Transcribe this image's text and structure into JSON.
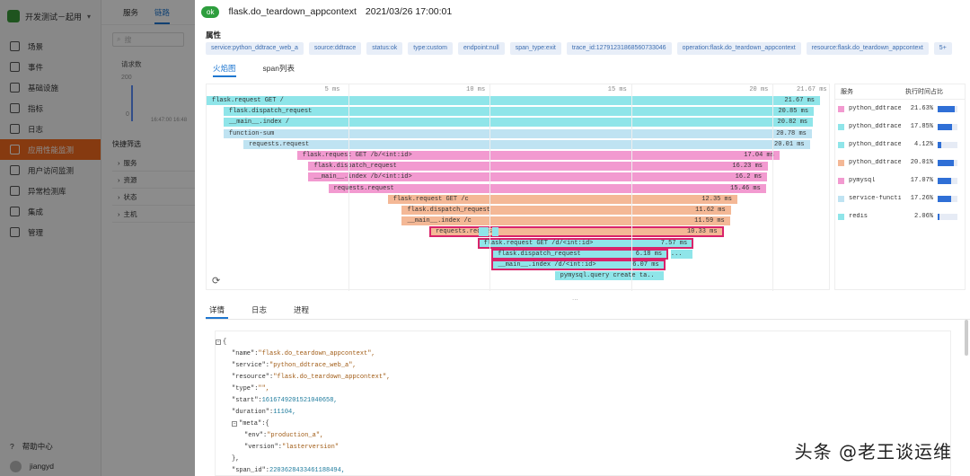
{
  "sidebar": {
    "app_name": "开发测试－起用",
    "items": [
      {
        "label": "场景",
        "icon": "grid-icon",
        "active": false
      },
      {
        "label": "事件",
        "icon": "flag-icon",
        "active": false
      },
      {
        "label": "基础设施",
        "icon": "server-icon",
        "active": false
      },
      {
        "label": "指标",
        "icon": "chart-icon",
        "active": false
      },
      {
        "label": "日志",
        "icon": "log-icon",
        "active": false
      },
      {
        "label": "应用性能监测",
        "icon": "apm-icon",
        "active": true
      },
      {
        "label": "用户访问监测",
        "icon": "user-icon",
        "active": false
      },
      {
        "label": "异常检测库",
        "icon": "alert-icon",
        "active": false
      },
      {
        "label": "集成",
        "icon": "puzzle-icon",
        "active": false
      },
      {
        "label": "管理",
        "icon": "gear-icon",
        "active": false
      }
    ],
    "footer": {
      "help": "帮助中心",
      "user": "jiangyd"
    }
  },
  "bg_main": {
    "tabs": [
      "服务",
      "链路"
    ],
    "search_placeholder": "搜",
    "chart_title": "请求数",
    "chart_y": "200",
    "chart_zero": "0",
    "axis_labels": "16:47:00    16:48",
    "filter_title": "快捷筛选",
    "filters": [
      "服务",
      "资源",
      "状态",
      "主机"
    ]
  },
  "drawer": {
    "status": "ok",
    "title": "flask.do_teardown_appcontext",
    "time": "2021/03/26 17:00:01",
    "attr_heading": "属性",
    "tags": [
      "service:python_ddtrace_web_a",
      "source:ddtrace",
      "status:ok",
      "type:custom",
      "endpoint:null",
      "span_type:exit",
      "trace_id:12791231868560733046",
      "operation:flask.do_teardown_appcontext",
      "resource:flask.do_teardown_appcontext",
      "5+"
    ],
    "tabs": [
      "火焰图",
      "span列表"
    ],
    "detail_tabs": [
      "详情",
      "日志",
      "进程"
    ],
    "divider": "..."
  },
  "flame": {
    "ruler": [
      "5 ms",
      "10 ms",
      "15 ms",
      "20 ms",
      "21.67 ms"
    ],
    "bars": [
      {
        "name": "flask.request GET /",
        "duration": "21.67 ms",
        "start_ms": 0,
        "dur_ms": 21.67,
        "depth": 0,
        "color": "cyan",
        "selected": false
      },
      {
        "name": "flask.dispatch_request",
        "duration": "20.85 ms",
        "start_ms": 0.6,
        "dur_ms": 20.85,
        "depth": 1,
        "color": "cyan",
        "selected": false
      },
      {
        "name": "__main__.index /",
        "duration": "20.82 ms",
        "start_ms": 0.6,
        "dur_ms": 20.82,
        "depth": 2,
        "color": "cyan",
        "selected": false
      },
      {
        "name": "function-sum",
        "duration": "20.78 ms",
        "start_ms": 0.6,
        "dur_ms": 20.78,
        "depth": 3,
        "color": "cyan-light",
        "selected": false
      },
      {
        "name": "requests.request",
        "duration": "20.01 ms",
        "start_ms": 1.3,
        "dur_ms": 20.01,
        "depth": 4,
        "color": "cyan-light",
        "selected": false
      },
      {
        "name": "flask.request GET /b/<int:id>",
        "duration": "17.04 ms",
        "start_ms": 3.2,
        "dur_ms": 17.04,
        "depth": 5,
        "color": "pink",
        "selected": false
      },
      {
        "name": "flask.dispatch_request",
        "duration": "16.23 ms",
        "start_ms": 3.6,
        "dur_ms": 16.23,
        "depth": 6,
        "color": "pink",
        "selected": false
      },
      {
        "name": "__main__.index /b/<int:id>",
        "duration": "16.2 ms",
        "start_ms": 3.6,
        "dur_ms": 16.2,
        "depth": 7,
        "color": "pink",
        "selected": false
      },
      {
        "name": "requests.request",
        "duration": "15.46 ms",
        "start_ms": 4.3,
        "dur_ms": 15.46,
        "depth": 8,
        "color": "pink",
        "selected": false
      },
      {
        "name": "flask.request GET /c",
        "duration": "12.35 ms",
        "start_ms": 6.4,
        "dur_ms": 12.35,
        "depth": 9,
        "color": "orange",
        "selected": false
      },
      {
        "name": "flask.dispatch_request",
        "duration": "11.62 ms",
        "start_ms": 6.9,
        "dur_ms": 11.62,
        "depth": 10,
        "color": "orange",
        "selected": false
      },
      {
        "name": "__main__.index /c",
        "duration": "11.59 ms",
        "start_ms": 6.9,
        "dur_ms": 11.59,
        "depth": 11,
        "color": "orange",
        "selected": false
      },
      {
        "name": "requests.request",
        "duration": "10.33 ms",
        "start_ms": 7.9,
        "dur_ms": 10.33,
        "depth": 12,
        "color": "orange",
        "selected": true
      },
      {
        "name": "flask.request GET /d/<int:id>",
        "duration": "7.57 ms",
        "start_ms": 9.6,
        "dur_ms": 7.57,
        "depth": 13,
        "color": "cyan",
        "selected": true
      },
      {
        "name": "flask.dispatch_request",
        "duration": "6.18 ms",
        "start_ms": 10.1,
        "dur_ms": 6.18,
        "depth": 14,
        "color": "cyan",
        "selected": true
      },
      {
        "name": "__main__.index /d/<int:id>",
        "duration": "6.07 ms",
        "start_ms": 10.1,
        "dur_ms": 6.07,
        "depth": 15,
        "color": "cyan",
        "selected": true
      },
      {
        "name": "pymysql.query create ta...",
        "duration": "",
        "start_ms": 12.3,
        "dur_ms": 3.5,
        "depth": 16,
        "color": "cyan",
        "selected": false
      }
    ],
    "extra_label": "..."
  },
  "services": {
    "headers": [
      "服务",
      "执行时间占比"
    ],
    "rows": [
      {
        "name": "python_ddtrace_web_a",
        "pct": "21.63%",
        "fraction": 0.2163,
        "color": "#f29ad0"
      },
      {
        "name": "python_ddtrace_web_b",
        "pct": "17.85%",
        "fraction": 0.1785,
        "color": "#8fe5e9"
      },
      {
        "name": "python_ddtrace_web_c",
        "pct": "4.12%",
        "fraction": 0.0412,
        "color": "#8fe5e9"
      },
      {
        "name": "python_ddtrace_web_d",
        "pct": "20.01%",
        "fraction": 0.2001,
        "color": "#f4b896"
      },
      {
        "name": "pymysql",
        "pct": "17.07%",
        "fraction": 0.1707,
        "color": "#f29ad0"
      },
      {
        "name": "service-function",
        "pct": "17.26%",
        "fraction": 0.1726,
        "color": "#bfe3f2"
      },
      {
        "name": "redis",
        "pct": "2.06%",
        "fraction": 0.0206,
        "color": "#8fe5e9"
      }
    ]
  },
  "json_view": {
    "lines": [
      {
        "indent": 0,
        "key": "",
        "value": "{",
        "vtype": "p",
        "toggle": true
      },
      {
        "indent": 1,
        "key": "\"name\":",
        "value": "\"flask.do_teardown_appcontext\",",
        "vtype": "s"
      },
      {
        "indent": 1,
        "key": "\"service\":",
        "value": "\"python_ddtrace_web_a\",",
        "vtype": "s"
      },
      {
        "indent": 1,
        "key": "\"resource\":",
        "value": "\"flask.do_teardown_appcontext\",",
        "vtype": "s"
      },
      {
        "indent": 1,
        "key": "\"type\":",
        "value": "\"\",",
        "vtype": "s"
      },
      {
        "indent": 1,
        "key": "\"start\":",
        "value": "1616749201521040658,",
        "vtype": "n"
      },
      {
        "indent": 1,
        "key": "\"duration\":",
        "value": "11104,",
        "vtype": "n"
      },
      {
        "indent": 1,
        "key": "\"meta\":",
        "value": "{",
        "vtype": "p",
        "toggle": true
      },
      {
        "indent": 2,
        "key": "\"env\":",
        "value": "\"production_a\",",
        "vtype": "s"
      },
      {
        "indent": 2,
        "key": "\"version\":",
        "value": "\"lasterversion\"",
        "vtype": "s"
      },
      {
        "indent": 1,
        "key": "",
        "value": "},",
        "vtype": "p"
      },
      {
        "indent": 1,
        "key": "\"span_id\":",
        "value": "2203628433461188494,",
        "vtype": "n"
      }
    ]
  },
  "watermark": "头条 @老王谈运维"
}
